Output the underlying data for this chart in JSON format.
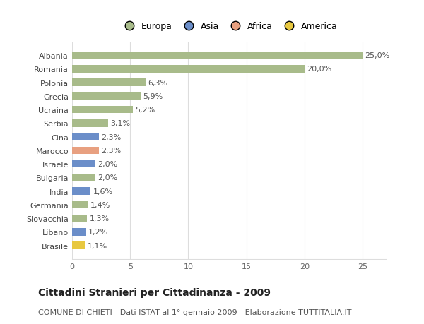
{
  "categories": [
    "Brasile",
    "Libano",
    "Slovacchia",
    "Germania",
    "India",
    "Bulgaria",
    "Israele",
    "Marocco",
    "Cina",
    "Serbia",
    "Ucraina",
    "Grecia",
    "Polonia",
    "Romania",
    "Albania"
  ],
  "values": [
    1.1,
    1.2,
    1.3,
    1.4,
    1.6,
    2.0,
    2.0,
    2.3,
    2.3,
    3.1,
    5.2,
    5.9,
    6.3,
    20.0,
    25.0
  ],
  "labels": [
    "1,1%",
    "1,2%",
    "1,3%",
    "1,4%",
    "1,6%",
    "2,0%",
    "2,0%",
    "2,3%",
    "2,3%",
    "3,1%",
    "5,2%",
    "5,9%",
    "6,3%",
    "20,0%",
    "25,0%"
  ],
  "continents": [
    "America",
    "Asia",
    "Europa",
    "Europa",
    "Asia",
    "Europa",
    "Asia",
    "Africa",
    "Asia",
    "Europa",
    "Europa",
    "Europa",
    "Europa",
    "Europa",
    "Europa"
  ],
  "continent_colors": {
    "Europa": "#a8bb8a",
    "Asia": "#6b8ec9",
    "Africa": "#e8a080",
    "America": "#e8c840"
  },
  "legend_items": [
    "Europa",
    "Asia",
    "Africa",
    "America"
  ],
  "legend_colors": [
    "#a8bb8a",
    "#6b8ec9",
    "#e8a080",
    "#e8c840"
  ],
  "xlim": [
    0,
    27
  ],
  "xticks": [
    0,
    5,
    10,
    15,
    20,
    25
  ],
  "title": "Cittadini Stranieri per Cittadinanza - 2009",
  "subtitle": "COMUNE DI CHIETI - Dati ISTAT al 1° gennaio 2009 - Elaborazione TUTTITALIA.IT",
  "background_color": "#ffffff",
  "plot_bg_color": "#ffffff",
  "grid_color": "#dddddd",
  "bar_height": 0.55,
  "title_fontsize": 10,
  "subtitle_fontsize": 8,
  "label_fontsize": 8,
  "tick_fontsize": 8
}
